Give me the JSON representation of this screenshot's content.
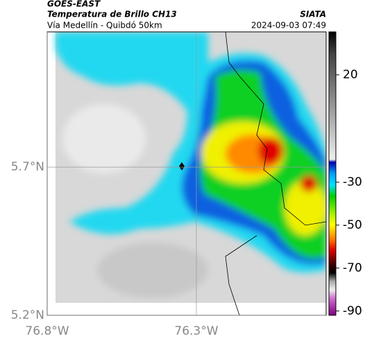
{
  "header": {
    "source": "GOES-EAST",
    "product": "Temperatura de Brillo CH13",
    "region": "Vía Medellín - Quibdó 50km",
    "agency": "SIATA",
    "datetime": "2024-09-03 07:49"
  },
  "map": {
    "xlim": [
      -76.8,
      -75.865
    ],
    "ylim": [
      5.2,
      6.156
    ],
    "xticks": [
      {
        "value": -76.8,
        "label": "76.8°W"
      },
      {
        "value": -76.3,
        "label": "76.3°W"
      }
    ],
    "yticks": [
      {
        "value": 5.2,
        "label": "5.2°N"
      },
      {
        "value": 5.7,
        "label": "5.7°N"
      }
    ],
    "grid": true
  },
  "colorbar": {
    "lim": [
      -92,
      40
    ],
    "ticks": [
      20,
      -30,
      -50,
      -70,
      -90
    ]
  }
}
